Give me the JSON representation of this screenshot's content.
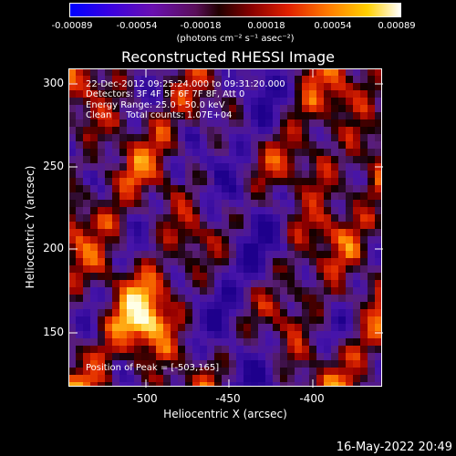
{
  "colorbar": {
    "ticks": [
      "-0.00089",
      "-0.00054",
      "-0.00018",
      "0.00018",
      "0.00054",
      "0.00089"
    ],
    "units": "(photons cm⁻² s⁻¹ asec⁻²)"
  },
  "title": "Reconstructed RHESSI Image",
  "annotation": {
    "line1": "22-Dec-2012 09:25:24.000 to 09:31:20.000",
    "line2": "Detectors: 3F 4F 5F 6F 7F 8F, Att 0",
    "line3": "Energy Range: 25.0 - 50.0 keV",
    "line4": "Clean     Total counts: 1.07E+04",
    "peak": "Position of Peak = [-503,165]"
  },
  "axes": {
    "xlabel": "Heliocentric X (arcsec)",
    "ylabel": "Heliocentric Y (arcsec)",
    "x_ticks": [
      "-500",
      "-450",
      "-400"
    ],
    "y_ticks": [
      "300",
      "250",
      "200",
      "150"
    ],
    "xlim": [
      -545,
      -412
    ],
    "ylim": [
      117,
      310
    ]
  },
  "timestamp": "16-May-2022 20:49",
  "colors": {
    "background": "#000000",
    "text": "#ffffff"
  }
}
